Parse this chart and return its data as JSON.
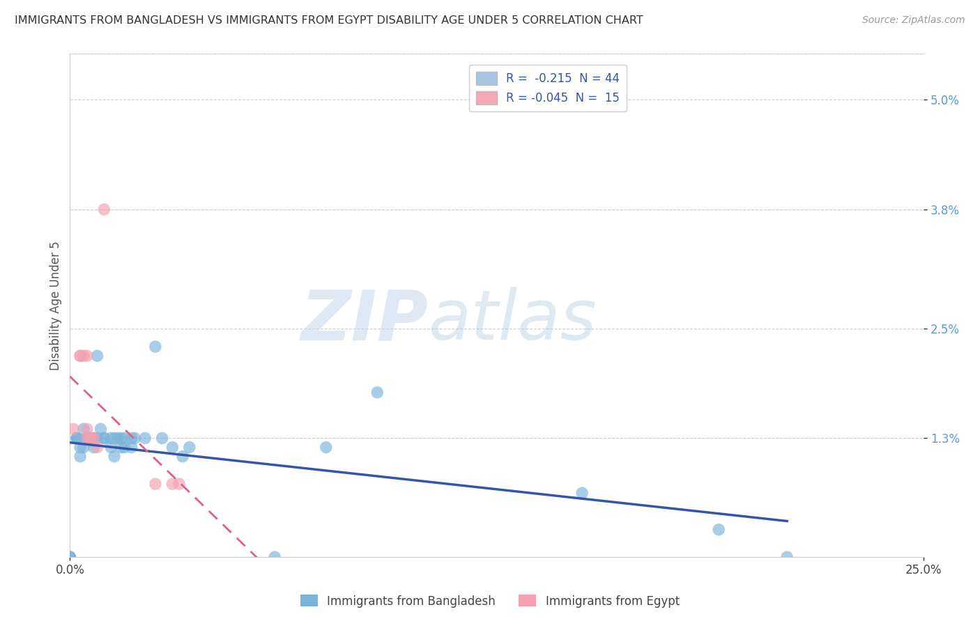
{
  "title": "IMMIGRANTS FROM BANGLADESH VS IMMIGRANTS FROM EGYPT DISABILITY AGE UNDER 5 CORRELATION CHART",
  "source": "Source: ZipAtlas.com",
  "ylabel": "Disability Age Under 5",
  "xlim": [
    0.0,
    0.25
  ],
  "ylim": [
    0.0,
    0.055
  ],
  "yticks": [
    0.013,
    0.025,
    0.038,
    0.05
  ],
  "ytick_labels": [
    "1.3%",
    "2.5%",
    "3.8%",
    "5.0%"
  ],
  "xticks": [
    0.0,
    0.25
  ],
  "xtick_labels": [
    "0.0%",
    "25.0%"
  ],
  "legend_items": [
    {
      "label": "R =  -0.215  N = 44",
      "color": "#a8c4e0"
    },
    {
      "label": "R = -0.045  N =  15",
      "color": "#f4a8b8"
    }
  ],
  "bangladesh_scatter": [
    [
      0.0,
      0.0
    ],
    [
      0.0,
      0.0
    ],
    [
      0.0,
      0.0
    ],
    [
      0.002,
      0.013
    ],
    [
      0.002,
      0.013
    ],
    [
      0.002,
      0.013
    ],
    [
      0.003,
      0.011
    ],
    [
      0.003,
      0.012
    ],
    [
      0.004,
      0.012
    ],
    [
      0.004,
      0.014
    ],
    [
      0.005,
      0.013
    ],
    [
      0.005,
      0.013
    ],
    [
      0.006,
      0.013
    ],
    [
      0.007,
      0.012
    ],
    [
      0.007,
      0.013
    ],
    [
      0.008,
      0.013
    ],
    [
      0.008,
      0.022
    ],
    [
      0.009,
      0.014
    ],
    [
      0.01,
      0.013
    ],
    [
      0.01,
      0.013
    ],
    [
      0.012,
      0.012
    ],
    [
      0.012,
      0.013
    ],
    [
      0.013,
      0.011
    ],
    [
      0.013,
      0.013
    ],
    [
      0.014,
      0.013
    ],
    [
      0.015,
      0.012
    ],
    [
      0.015,
      0.013
    ],
    [
      0.016,
      0.013
    ],
    [
      0.016,
      0.012
    ],
    [
      0.018,
      0.012
    ],
    [
      0.018,
      0.013
    ],
    [
      0.019,
      0.013
    ],
    [
      0.022,
      0.013
    ],
    [
      0.025,
      0.023
    ],
    [
      0.027,
      0.013
    ],
    [
      0.03,
      0.012
    ],
    [
      0.033,
      0.011
    ],
    [
      0.035,
      0.012
    ],
    [
      0.06,
      0.0
    ],
    [
      0.075,
      0.012
    ],
    [
      0.09,
      0.018
    ],
    [
      0.15,
      0.007
    ],
    [
      0.19,
      0.003
    ],
    [
      0.21,
      0.0
    ]
  ],
  "egypt_scatter": [
    [
      0.001,
      0.014
    ],
    [
      0.003,
      0.022
    ],
    [
      0.003,
      0.022
    ],
    [
      0.004,
      0.022
    ],
    [
      0.005,
      0.022
    ],
    [
      0.005,
      0.014
    ],
    [
      0.005,
      0.013
    ],
    [
      0.006,
      0.013
    ],
    [
      0.006,
      0.013
    ],
    [
      0.007,
      0.013
    ],
    [
      0.008,
      0.012
    ],
    [
      0.01,
      0.038
    ],
    [
      0.025,
      0.008
    ],
    [
      0.03,
      0.008
    ],
    [
      0.032,
      0.008
    ]
  ],
  "bangladesh_color": "#7ab3d9",
  "egypt_color": "#f4a0b0",
  "bangladesh_line_color": "#3355aa",
  "egypt_line_color": "#e06080",
  "watermark_text": "ZIP",
  "watermark_text2": "atlas",
  "background_color": "#ffffff",
  "grid_color": "#cccccc"
}
